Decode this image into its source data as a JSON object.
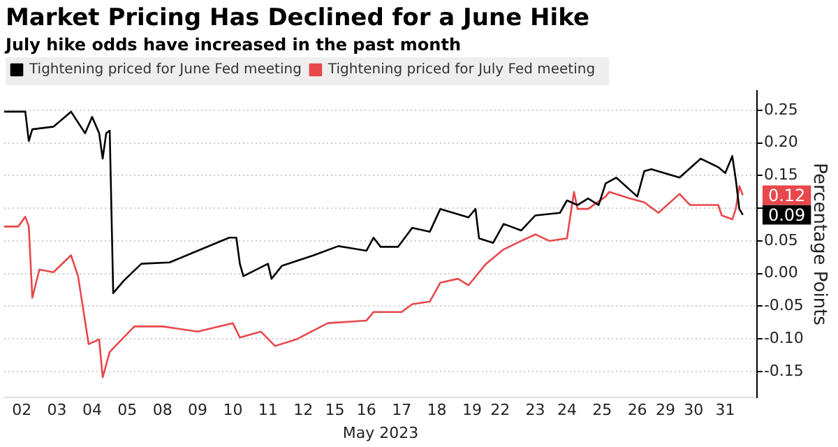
{
  "chart_data": {
    "type": "line",
    "title": "Market Pricing Has Declined for a June Hike",
    "subtitle": "July hike odds have increased in the past month",
    "xlabel": "May 2023",
    "ylabel": "Percentage Points",
    "categories": [
      null,
      null,
      null,
      null,
      null,
      "02",
      null,
      null,
      null,
      null,
      null,
      null,
      null,
      null,
      null,
      "03",
      null,
      null,
      null,
      null,
      null,
      null,
      null,
      null,
      null,
      "04",
      null,
      null,
      null,
      null,
      null,
      null,
      null,
      null,
      null,
      "05",
      null,
      null,
      null,
      null,
      null,
      null,
      null,
      null,
      null,
      "08",
      null,
      null,
      null,
      null,
      null,
      null,
      null,
      null,
      null,
      "09",
      null,
      null,
      null,
      null,
      null,
      null,
      null,
      null,
      null,
      "10",
      null,
      null,
      null,
      null,
      null,
      null,
      null,
      null,
      null,
      "11",
      null,
      null,
      null,
      null,
      null,
      null,
      null,
      null,
      null,
      "12",
      null,
      null,
      null,
      null,
      null,
      null,
      null,
      null,
      "15",
      null,
      null,
      null,
      null,
      null,
      null,
      null,
      null,
      "16",
      null,
      null,
      null,
      null,
      null,
      null,
      null,
      null,
      null,
      "17",
      null,
      null,
      null,
      null,
      null,
      null,
      null,
      null,
      null,
      "18",
      null,
      null,
      null,
      null,
      null,
      null,
      null,
      null,
      null,
      "19",
      null,
      null,
      null,
      null,
      null,
      null,
      null,
      "22",
      null,
      null,
      null,
      null,
      null,
      null,
      null,
      null,
      null,
      "23",
      null,
      null,
      null,
      null,
      null,
      null,
      null,
      null,
      "24",
      null,
      null,
      null,
      null,
      null,
      null,
      null,
      null,
      null,
      "25",
      null,
      null,
      null,
      null,
      null,
      null,
      null,
      null,
      null,
      "26",
      null,
      null,
      null,
      null,
      null,
      null,
      null,
      "29",
      null,
      null,
      null,
      null,
      null,
      null,
      null,
      "30",
      null,
      null,
      null,
      null,
      null,
      null,
      null,
      null,
      "31",
      null,
      null,
      null,
      null,
      null,
      null,
      null,
      null,
      null
    ],
    "ylim": [
      -0.19,
      0.28
    ],
    "yticks": [
      {
        "value": -0.15,
        "label": "-0.15"
      },
      {
        "value": -0.1,
        "label": "-0.10"
      },
      {
        "value": -0.05,
        "label": "-0.05"
      },
      {
        "value": 0,
        "label": "0.00"
      },
      {
        "value": 0.05,
        "label": "0.05"
      },
      {
        "value": 0.1,
        "label": null
      },
      {
        "value": 0.15,
        "label": "0.15"
      },
      {
        "value": 0.2,
        "label": "0.20"
      },
      {
        "value": 0.25,
        "label": "0.25"
      }
    ],
    "grid": "y",
    "legend": "top left",
    "series": [
      {
        "name": "Tightening priced for June Fed meeting",
        "color": "#000000",
        "values": [
          0.248,
          null,
          null,
          null,
          null,
          null,
          0.248,
          0.203,
          0.221,
          null,
          null,
          null,
          null,
          null,
          0.225,
          null,
          null,
          null,
          null,
          0.248,
          null,
          null,
          null,
          0.215,
          null,
          0.24,
          null,
          0.215,
          0.176,
          0.215,
          0.219,
          -0.03,
          null,
          null,
          -0.011,
          null,
          null,
          null,
          null,
          0.015,
          null,
          null,
          null,
          null,
          null,
          null,
          null,
          0.017,
          null,
          null,
          null,
          null,
          null,
          null,
          null,
          0.035,
          null,
          null,
          null,
          null,
          null,
          null,
          null,
          null,
          0.055,
          null,
          0.055,
          0.015,
          -0.004,
          null,
          null,
          null,
          null,
          null,
          null,
          0.015,
          -0.008,
          null,
          null,
          0.012,
          null,
          null,
          null,
          null,
          null,
          null,
          null,
          null,
          0.028,
          null,
          null,
          null,
          null,
          null,
          null,
          0.042,
          null,
          null,
          null,
          null,
          null,
          null,
          null,
          0.035,
          null,
          0.055,
          null,
          0.041,
          null,
          null,
          null,
          null,
          0.041,
          null,
          null,
          null,
          0.07,
          null,
          null,
          null,
          null,
          0.064,
          null,
          null,
          0.099,
          null,
          null,
          null,
          null,
          null,
          null,
          null,
          0.086,
          null,
          0.099,
          0.054,
          null,
          null,
          null,
          0.047,
          null,
          null,
          0.076,
          null,
          null,
          null,
          null,
          0.066,
          null,
          null,
          null,
          0.089,
          null,
          null,
          null,
          null,
          null,
          null,
          0.093,
          null,
          0.112,
          null,
          null,
          0.105,
          null,
          null,
          0.115,
          null,
          null,
          0.105,
          null,
          0.138,
          null,
          null,
          0.147,
          null,
          null,
          null,
          null,
          null,
          0.118,
          null,
          0.157,
          null,
          0.16,
          null,
          null,
          null,
          null,
          null,
          null,
          null,
          0.147,
          null,
          null,
          null,
          null,
          null,
          0.176,
          null,
          null,
          null,
          null,
          0.163,
          null,
          0.154,
          null,
          0.18,
          0.144,
          0.099,
          0.09,
          null,
          null,
          null,
          null
        ],
        "value_labels": [
          null,
          null,
          null,
          null,
          null,
          null,
          null,
          null,
          null,
          null,
          null,
          null,
          null,
          null,
          null,
          null,
          null,
          null,
          null,
          null,
          null,
          null,
          null,
          null,
          null,
          null,
          null,
          null,
          null,
          null,
          null,
          null,
          null,
          null,
          null,
          null,
          null,
          null,
          null,
          null,
          null,
          null,
          null,
          null,
          null,
          null,
          null,
          null,
          null,
          null,
          null,
          null,
          null,
          null,
          null,
          null,
          null,
          null,
          null,
          null,
          null,
          null,
          null,
          null,
          null,
          null,
          null,
          null,
          null,
          null,
          null,
          null,
          null,
          null,
          null,
          null,
          null,
          null,
          null,
          null,
          null,
          null,
          null,
          null,
          null,
          null,
          null,
          null,
          null,
          null,
          null,
          null,
          null,
          null,
          null,
          null,
          null,
          null,
          null,
          null,
          null,
          null,
          null,
          null,
          null,
          null,
          null,
          null,
          null,
          null,
          null,
          null,
          null,
          null,
          null,
          null,
          null,
          null,
          null,
          null,
          null,
          null,
          null,
          null,
          null,
          null,
          null,
          null,
          null,
          null,
          null,
          null,
          null,
          null,
          null,
          null,
          null,
          null,
          null,
          null,
          null,
          null,
          null,
          null,
          null,
          null,
          null,
          null,
          null,
          null,
          null,
          null,
          null,
          null,
          null,
          null,
          null,
          null,
          null,
          null,
          null,
          null,
          null,
          null,
          null,
          null,
          null,
          null,
          null,
          null,
          null,
          null,
          null,
          null,
          null,
          null,
          null,
          null,
          null,
          null,
          null,
          null,
          null,
          null,
          null,
          null,
          null,
          null,
          null,
          null,
          null,
          null,
          null,
          null,
          null,
          null,
          null,
          null,
          null,
          null,
          null,
          null,
          null,
          null,
          null,
          null,
          null,
          null,
          null,
          null,
          "0.09",
          null,
          null,
          null,
          null
        ]
      },
      {
        "name": "Tightening priced for July Fed meeting",
        "color": "#e8474b",
        "values": [
          0.072,
          null,
          null,
          null,
          0.072,
          null,
          0.087,
          0.072,
          -0.037,
          null,
          0.006,
          null,
          null,
          null,
          0.002,
          null,
          null,
          null,
          null,
          0.028,
          null,
          -0.004,
          null,
          null,
          -0.108,
          null,
          null,
          -0.101,
          -0.159,
          null,
          -0.12,
          null,
          null,
          null,
          null,
          null,
          null,
          -0.081,
          null,
          null,
          null,
          null,
          null,
          null,
          null,
          -0.081,
          null,
          null,
          null,
          null,
          null,
          null,
          null,
          null,
          null,
          -0.089,
          null,
          null,
          null,
          null,
          null,
          null,
          null,
          null,
          null,
          -0.076,
          null,
          -0.098,
          null,
          null,
          null,
          null,
          null,
          -0.089,
          null,
          null,
          null,
          -0.111,
          null,
          null,
          null,
          null,
          null,
          -0.101,
          null,
          null,
          null,
          null,
          null,
          null,
          null,
          null,
          -0.076,
          null,
          null,
          null,
          null,
          null,
          null,
          null,
          null,
          null,
          null,
          -0.072,
          null,
          -0.059,
          null,
          null,
          null,
          null,
          null,
          null,
          null,
          -0.059,
          null,
          null,
          -0.047,
          null,
          null,
          null,
          null,
          -0.043,
          null,
          null,
          -0.014,
          null,
          null,
          null,
          null,
          -0.008,
          null,
          null,
          -0.018,
          null,
          null,
          null,
          null,
          0.015,
          null,
          null,
          null,
          null,
          0.037,
          null,
          null,
          null,
          null,
          0.05,
          null,
          null,
          null,
          0.06,
          null,
          null,
          null,
          0.05,
          null,
          null,
          null,
          null,
          0.054,
          null,
          0.125,
          0.099,
          null,
          null,
          0.099,
          null,
          null,
          null,
          null,
          0.118,
          0.125,
          null,
          null,
          null,
          null,
          null,
          0.115,
          null,
          null,
          null,
          0.109,
          null,
          null,
          null,
          0.093,
          null,
          null,
          null,
          null,
          null,
          0.122,
          null,
          null,
          0.105,
          null,
          null,
          null,
          null,
          null,
          null,
          null,
          0.105,
          0.089,
          null,
          null,
          0.083,
          0.099,
          0.134,
          0.12,
          null,
          null,
          null,
          null
        ],
        "value_labels": [
          null,
          null,
          null,
          null,
          null,
          null,
          null,
          null,
          null,
          null,
          null,
          null,
          null,
          null,
          null,
          null,
          null,
          null,
          null,
          null,
          null,
          null,
          null,
          null,
          null,
          null,
          null,
          null,
          null,
          null,
          null,
          null,
          null,
          null,
          null,
          null,
          null,
          null,
          null,
          null,
          null,
          null,
          null,
          null,
          null,
          null,
          null,
          null,
          null,
          null,
          null,
          null,
          null,
          null,
          null,
          null,
          null,
          null,
          null,
          null,
          null,
          null,
          null,
          null,
          null,
          null,
          null,
          null,
          null,
          null,
          null,
          null,
          null,
          null,
          null,
          null,
          null,
          null,
          null,
          null,
          null,
          null,
          null,
          null,
          null,
          null,
          null,
          null,
          null,
          null,
          null,
          null,
          null,
          null,
          null,
          null,
          null,
          null,
          null,
          null,
          null,
          null,
          null,
          null,
          null,
          null,
          null,
          null,
          null,
          null,
          null,
          null,
          null,
          null,
          null,
          null,
          null,
          null,
          null,
          null,
          null,
          null,
          null,
          null,
          null,
          null,
          null,
          null,
          null,
          null,
          null,
          null,
          null,
          null,
          null,
          null,
          null,
          null,
          null,
          null,
          null,
          null,
          null,
          null,
          null,
          null,
          null,
          null,
          null,
          null,
          null,
          null,
          null,
          null,
          null,
          null,
          null,
          null,
          null,
          null,
          null,
          null,
          null,
          null,
          null,
          null,
          null,
          null,
          null,
          null,
          null,
          null,
          null,
          null,
          null,
          null,
          null,
          null,
          null,
          null,
          null,
          null,
          null,
          null,
          null,
          null,
          null,
          null,
          null,
          null,
          null,
          null,
          null,
          null,
          null,
          null,
          null,
          null,
          null,
          null,
          null,
          null,
          null,
          null,
          null,
          null,
          null,
          null,
          null,
          null,
          "0.12",
          null,
          null,
          null,
          null
        ]
      }
    ]
  }
}
